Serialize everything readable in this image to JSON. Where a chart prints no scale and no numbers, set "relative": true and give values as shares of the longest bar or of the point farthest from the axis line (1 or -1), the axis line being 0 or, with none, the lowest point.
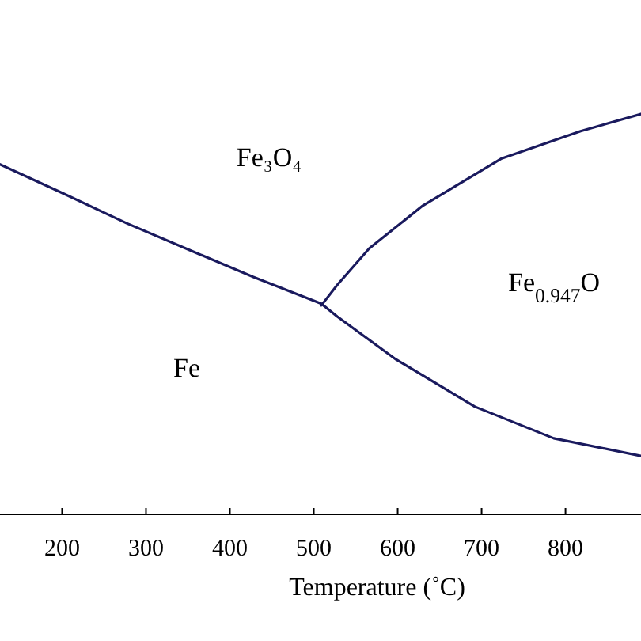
{
  "chart_data": {
    "type": "line",
    "relative": true,
    "xlabel": "Temperature (˚C)",
    "xlim": [
      126,
      890
    ],
    "xticks": [
      200,
      300,
      400,
      500,
      600,
      700,
      800
    ],
    "series": [
      {
        "color": "#1a1a5e",
        "x": [
          126,
          201,
          277,
          352,
          428,
          509,
          528,
          598,
          692,
          786,
          890
        ],
        "values": [
          0.874,
          0.802,
          0.727,
          0.66,
          0.593,
          0.526,
          0.494,
          0.387,
          0.269,
          0.19,
          0.146
        ]
      },
      {
        "color": "#1a1a5e",
        "x": [
          509,
          528,
          566,
          630,
          724,
          818,
          890
        ],
        "values": [
          0.522,
          0.573,
          0.664,
          0.771,
          0.889,
          0.957,
          1
        ]
      }
    ],
    "annotations": [
      "Fe₃O₄",
      "Fe$_{0.947}$O",
      "Fe"
    ],
    "line_style": "solid"
  }
}
